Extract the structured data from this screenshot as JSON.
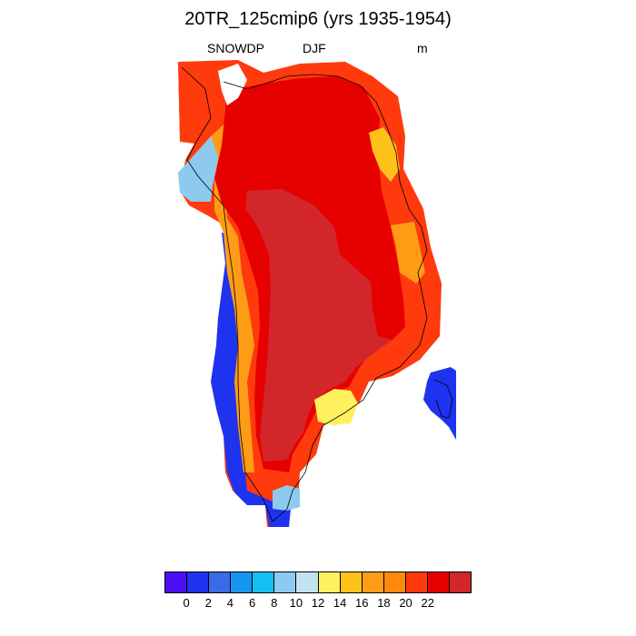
{
  "title": "20TR_125cmip6 (yrs 1935-1954)",
  "variable": "SNOWDP",
  "season": "DJF",
  "units": "m",
  "colorbar": {
    "colors": [
      "#4b10f2",
      "#1e33f0",
      "#3a6ae8",
      "#1796ee",
      "#14bff2",
      "#8ec9ee",
      "#c4e3f2",
      "#fff15e",
      "#fec21c",
      "#fe9d15",
      "#fe8a0d",
      "#ff3a0d",
      "#e60000",
      "#d3262a"
    ],
    "tick_labels": [
      "0",
      "2",
      "4",
      "6",
      "8",
      "10",
      "12",
      "14",
      "16",
      "18",
      "20",
      "22"
    ]
  },
  "map": {
    "region": "Greenland",
    "colors_used": {
      "deep_blue": "#1e33f0",
      "blue": "#3a6ae8",
      "light_blue": "#8ec9ee",
      "cyan": "#14bff2",
      "yellow": "#fff15e",
      "gold": "#fec21c",
      "orange": "#fe9d15",
      "red_orange": "#ff3a0d",
      "red": "#e60000",
      "dark_red": "#d3262a"
    }
  }
}
